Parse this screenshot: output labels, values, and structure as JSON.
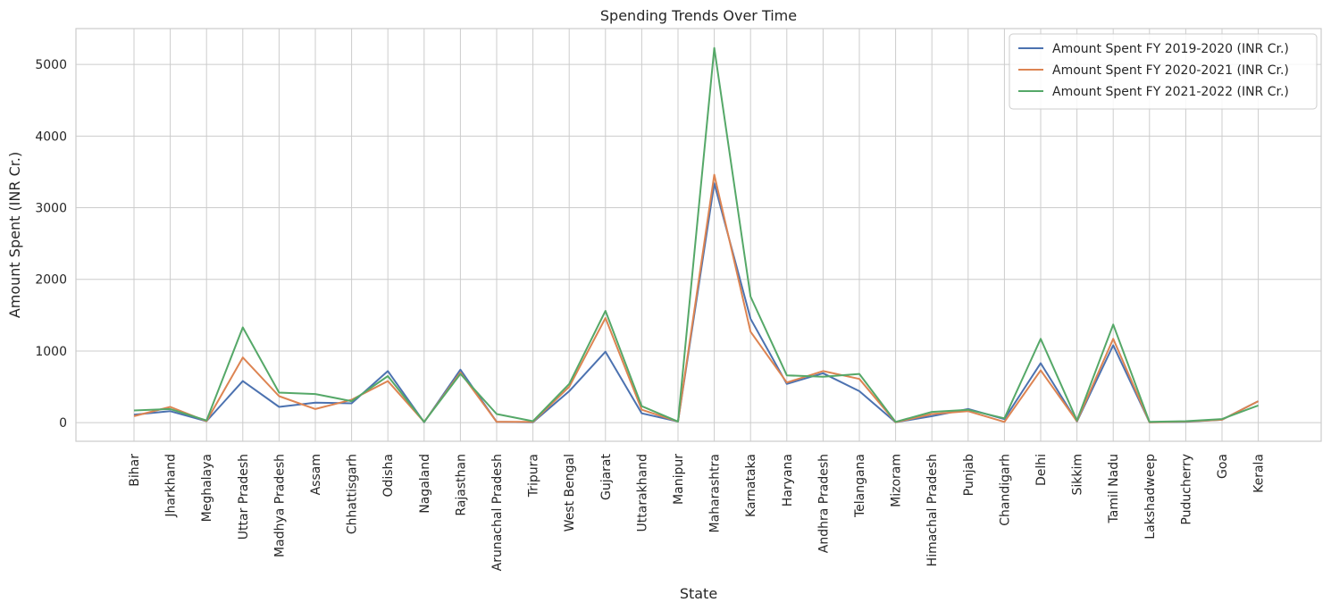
{
  "chart_data": {
    "type": "line",
    "title": "Spending Trends Over Time",
    "xlabel": "State",
    "ylabel": "Amount Spent (INR Cr.)",
    "ylim": [
      -260,
      5500
    ],
    "yticks": [
      0,
      1000,
      2000,
      3000,
      4000,
      5000
    ],
    "grid": true,
    "legend_position": "top-right",
    "categories": [
      "Bihar",
      "Jharkhand",
      "Meghalaya",
      "Uttar Pradesh",
      "Madhya Pradesh",
      "Assam",
      "Chhattisgarh",
      "Odisha",
      "Nagaland",
      "Rajasthan",
      "Arunachal Pradesh",
      "Tripura",
      "West Bengal",
      "Gujarat",
      "Uttarakhand",
      "Manipur",
      "Maharashtra",
      "Karnataka",
      "Haryana",
      "Andhra Pradesh",
      "Telangana",
      "Mizoram",
      "Himachal Pradesh",
      "Punjab",
      "Chandigarh",
      "Delhi",
      "Sikkim",
      "Tamil Nadu",
      "Lakshadweep",
      "Puducherry",
      "Goa",
      "Kerala"
    ],
    "series": [
      {
        "name": "Amount Spent FY 2019-2020 (INR Cr.)",
        "color": "#4c72b0",
        "values": [
          110,
          160,
          20,
          580,
          220,
          280,
          270,
          720,
          5,
          740,
          10,
          5,
          440,
          990,
          130,
          15,
          3340,
          1450,
          540,
          690,
          440,
          5,
          90,
          190,
          50,
          830,
          15,
          1080,
          5,
          10,
          40,
          300
        ]
      },
      {
        "name": "Amount Spent FY 2020-2021 (INR Cr.)",
        "color": "#dd8452",
        "values": [
          90,
          220,
          20,
          910,
          370,
          190,
          320,
          580,
          10,
          700,
          10,
          10,
          500,
          1460,
          180,
          15,
          3460,
          1270,
          560,
          720,
          610,
          5,
          120,
          160,
          10,
          730,
          20,
          1170,
          5,
          15,
          40,
          300
        ]
      },
      {
        "name": "Amount Spent FY 2021-2022 (INR Cr.)",
        "color": "#55a868",
        "values": [
          170,
          190,
          30,
          1330,
          420,
          400,
          300,
          650,
          10,
          680,
          120,
          20,
          540,
          1560,
          230,
          15,
          5230,
          1760,
          660,
          640,
          680,
          10,
          150,
          180,
          60,
          1170,
          30,
          1370,
          10,
          20,
          50,
          240
        ]
      }
    ]
  }
}
